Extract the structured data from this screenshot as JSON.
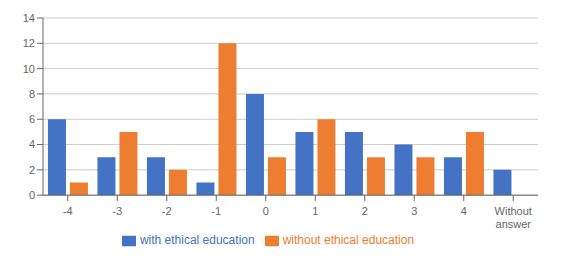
{
  "chart_data": {
    "type": "bar",
    "categories": [
      "-4",
      "-3",
      "-2",
      "-1",
      "0",
      "1",
      "2",
      "3",
      "4",
      "Without\nanswer"
    ],
    "series": [
      {
        "name": "with ethical education",
        "color": "#4472c4",
        "values": [
          6,
          3,
          3,
          1,
          8,
          5,
          5,
          4,
          3,
          2
        ]
      },
      {
        "name": "without ethical education",
        "color": "#ed7d31",
        "values": [
          1,
          5,
          2,
          12,
          3,
          6,
          3,
          3,
          5,
          0
        ]
      }
    ],
    "ylim": [
      0,
      14
    ],
    "yticks": [
      0,
      2,
      4,
      6,
      8,
      10,
      12,
      14
    ],
    "grid": true,
    "legend": "bottom"
  }
}
